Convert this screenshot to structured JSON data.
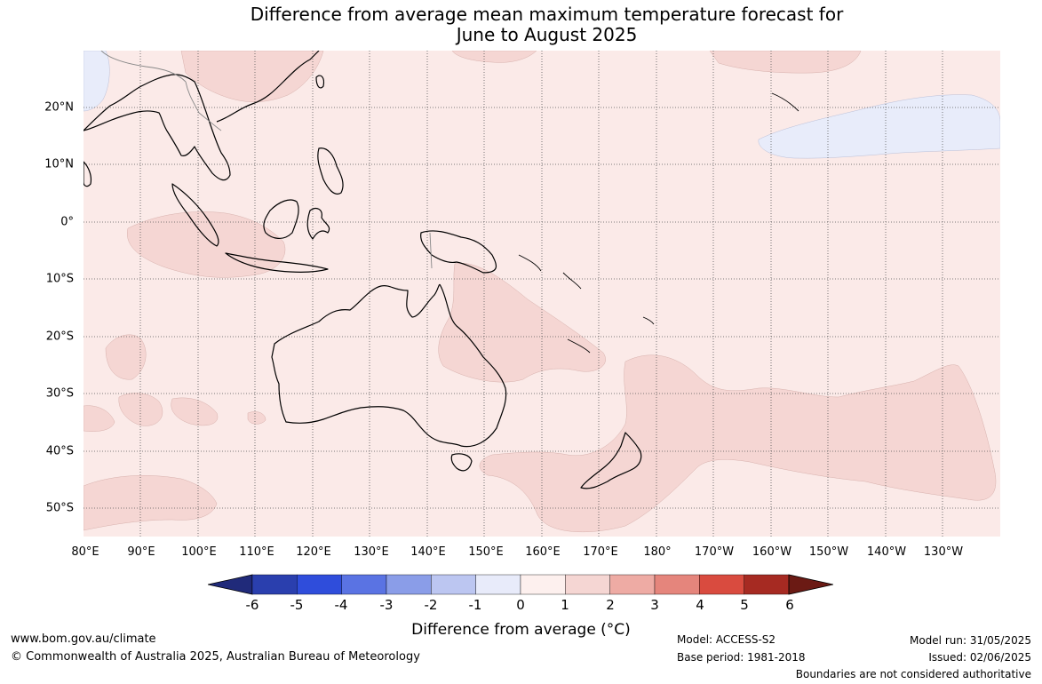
{
  "title": {
    "line1": "Difference from average mean maximum temperature forecast for",
    "line2": "June to August 2025"
  },
  "map": {
    "background_color": "#fbeae8",
    "warm_anomaly_color": "#f5d6d3",
    "cool_anomaly_color": "#e8ecfa",
    "coastline_color": "#000000",
    "border_color": "#888888",
    "grid": "dotted"
  },
  "lon_labels": [
    "80°E",
    "90°E",
    "100°E",
    "110°E",
    "120°E",
    "130°E",
    "140°E",
    "150°E",
    "160°E",
    "170°E",
    "180°",
    "170°W",
    "160°W",
    "150°W",
    "140°W",
    "130°W"
  ],
  "lat_labels": [
    "20°N",
    "10°N",
    "0°",
    "10°S",
    "20°S",
    "30°S",
    "40°S",
    "50°S"
  ],
  "colorbar": {
    "ticks": [
      "-6",
      "-5",
      "-4",
      "-3",
      "-2",
      "-1",
      "0",
      "1",
      "2",
      "3",
      "4",
      "5",
      "6"
    ],
    "colors": [
      "#202a7a",
      "#2a3fae",
      "#2f4ddb",
      "#5a73e3",
      "#8a9de8",
      "#bcc6f1",
      "#e8ebfa",
      "#fdf0ee",
      "#f5d6d3",
      "#eeaba4",
      "#e5857c",
      "#d94b3f",
      "#a62a22",
      "#6b1a14"
    ],
    "label": "Difference from average (°C)"
  },
  "footer": {
    "url": "www.bom.gov.au/climate",
    "copyright": "© Commonwealth of Australia 2025, Australian Bureau of Meteorology",
    "model": "Model: ACCESS-S2",
    "base_period": "Base period: 1981-2018",
    "model_run": "Model run: 31/05/2025",
    "issued": "Issued: 02/06/2025",
    "disclaimer": "Boundaries are not considered authoritative"
  }
}
